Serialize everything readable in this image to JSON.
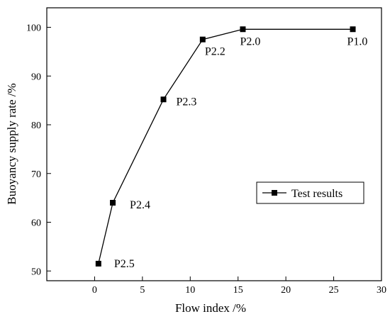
{
  "chart_data": {
    "type": "line",
    "xlabel": "Flow index /%",
    "ylabel": "Buoyancy supply rate /%",
    "xlim": [
      -5,
      30
    ],
    "ylim": [
      48,
      104
    ],
    "xticks": [
      0,
      5,
      10,
      15,
      20,
      25,
      30
    ],
    "yticks": [
      50,
      60,
      70,
      80,
      90,
      100
    ],
    "grid": false,
    "legend_position": "middle-right",
    "series": [
      {
        "name": "Test results",
        "color": "#000000",
        "marker": "square",
        "x": [
          0.4,
          1.9,
          7.2,
          11.3,
          15.5,
          27.0
        ],
        "y": [
          51.5,
          64.0,
          85.2,
          97.5,
          99.6,
          99.6
        ],
        "labels": [
          "P2.5",
          "P2.4",
          "P2.3",
          "P2.2",
          "P2.0",
          "P1.0"
        ]
      }
    ]
  }
}
